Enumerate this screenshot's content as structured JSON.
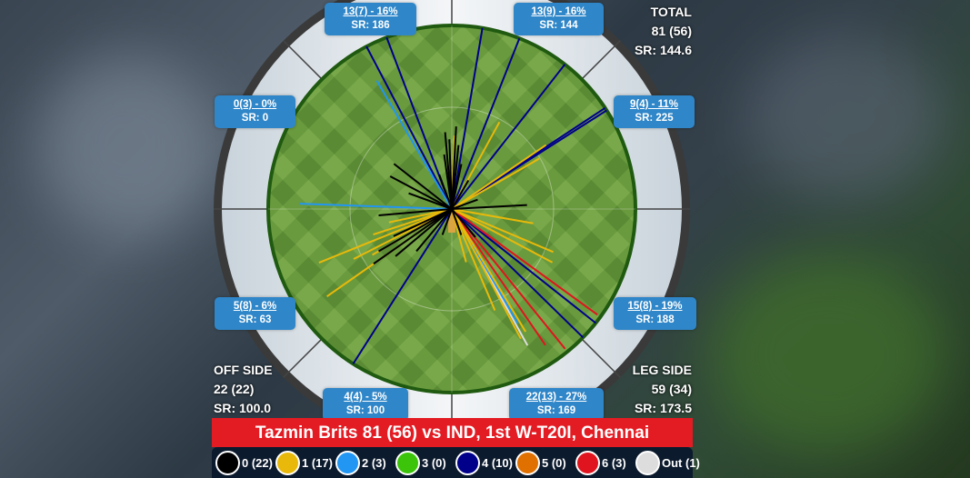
{
  "chart_data": {
    "type": "wagon-wheel",
    "title": "Tazmin Brits 81 (56) vs IND, 1st W-T20I, Chennai",
    "total": {
      "label": "TOTAL",
      "runs_balls": "81 (56)",
      "sr": "SR: 144.6"
    },
    "off_side": {
      "label": "OFF SIDE",
      "runs_balls": "22 (22)",
      "sr": "SR: 100.0"
    },
    "leg_side": {
      "label": "LEG SIDE",
      "runs_balls": "59 (34)",
      "sr": "SR: 173.5"
    },
    "sectors": [
      {
        "pos": "top-left",
        "label": "13(7) - 16%",
        "sr": "SR: 186"
      },
      {
        "pos": "top-right",
        "label": "13(9) - 16%",
        "sr": "SR: 144"
      },
      {
        "pos": "left-upper",
        "label": "0(3) - 0%",
        "sr": "SR: 0"
      },
      {
        "pos": "right-upper",
        "label": "9(4) - 11%",
        "sr": "SR: 225"
      },
      {
        "pos": "left-lower",
        "label": "5(8) - 6%",
        "sr": "SR: 63"
      },
      {
        "pos": "right-lower",
        "label": "15(8) - 19%",
        "sr": "SR: 188"
      },
      {
        "pos": "bottom-left",
        "label": "4(4) - 5%",
        "sr": "SR: 100"
      },
      {
        "pos": "bottom-right",
        "label": "22(13) - 27%",
        "sr": "SR: 169"
      }
    ],
    "legend": [
      {
        "label": "0 (22)",
        "color": "#000000"
      },
      {
        "label": "1 (17)",
        "color": "#e8b90a"
      },
      {
        "label": "2 (3)",
        "color": "#2196f3"
      },
      {
        "label": "3 (0)",
        "color": "#3cc40a"
      },
      {
        "label": "4 (10)",
        "color": "#00008b"
      },
      {
        "label": "5 (0)",
        "color": "#e07000"
      },
      {
        "label": "6 (3)",
        "color": "#e0141e"
      },
      {
        "label": "Out (1)",
        "color": "#dddddd"
      }
    ],
    "shots": [
      {
        "runs": 4,
        "angle": -27.7,
        "dist": 1.0
      },
      {
        "runs": 4,
        "angle": -20.8,
        "dist": 1.0
      },
      {
        "runs": 4,
        "angle": 9.6,
        "dist": 1.0
      },
      {
        "runs": 4,
        "angle": 21.6,
        "dist": 1.0
      },
      {
        "runs": 4,
        "angle": 38,
        "dist": 1.0
      },
      {
        "runs": 4,
        "angle": 56.6,
        "dist": 1.0
      },
      {
        "runs": 4,
        "angle": 57.5,
        "dist": 1.0
      },
      {
        "runs": 4,
        "angle": -147.5,
        "dist": 1.0
      },
      {
        "runs": 4,
        "angle": 128.4,
        "dist": 1.0
      },
      {
        "runs": 4,
        "angle": 134.4,
        "dist": 1.0
      },
      {
        "runs": 6,
        "angle": 126,
        "dist": 0.98
      },
      {
        "runs": 6,
        "angle": 141,
        "dist": 0.98
      },
      {
        "runs": 6,
        "angle": 145.5,
        "dist": 0.9
      },
      {
        "runs": "out",
        "angle": 151,
        "dist": 0.85
      },
      {
        "runs": 2,
        "angle": -30.3,
        "dist": 0.81
      },
      {
        "runs": 2,
        "angle": -88,
        "dist": 0.83
      },
      {
        "runs": 2,
        "angle": 150,
        "dist": 0.72
      },
      {
        "runs": 1,
        "angle": 28.7,
        "dist": 0.54
      },
      {
        "runs": 1,
        "angle": 55.8,
        "dist": 0.62
      },
      {
        "runs": 1,
        "angle": 60,
        "dist": 0.55
      },
      {
        "runs": 1,
        "angle": -112,
        "dist": 0.78
      },
      {
        "runs": 1,
        "angle": -125,
        "dist": 0.83
      },
      {
        "runs": 1,
        "angle": -117,
        "dist": 0.6
      },
      {
        "runs": 1,
        "angle": -108,
        "dist": 0.45
      },
      {
        "runs": 1,
        "angle": -102,
        "dist": 0.35
      },
      {
        "runs": 1,
        "angle": 152,
        "dist": 0.8
      },
      {
        "runs": 1,
        "angle": 149,
        "dist": 0.78
      },
      {
        "runs": 1,
        "angle": 118,
        "dist": 0.62
      },
      {
        "runs": 1,
        "angle": 113,
        "dist": 0.6
      },
      {
        "runs": 1,
        "angle": 2,
        "dist": 0.4
      },
      {
        "runs": 1,
        "angle": 157,
        "dist": 0.6
      },
      {
        "runs": 1,
        "angle": -120,
        "dist": 0.5
      },
      {
        "runs": 1,
        "angle": 100,
        "dist": 0.45
      },
      {
        "runs": 1,
        "angle": 165,
        "dist": 0.3
      },
      {
        "runs": 0,
        "angle": -5,
        "dist": 0.42
      },
      {
        "runs": 0,
        "angle": -2,
        "dist": 0.38
      },
      {
        "runs": 0,
        "angle": 3,
        "dist": 0.45
      },
      {
        "runs": 0,
        "angle": -8,
        "dist": 0.3
      },
      {
        "runs": 0,
        "angle": 6,
        "dist": 0.35
      },
      {
        "runs": 0,
        "angle": -52,
        "dist": 0.4
      },
      {
        "runs": 0,
        "angle": -62,
        "dist": 0.38
      },
      {
        "runs": 0,
        "angle": -95,
        "dist": 0.4
      },
      {
        "runs": 0,
        "angle": 87,
        "dist": 0.41
      },
      {
        "runs": 0,
        "angle": -125,
        "dist": 0.52
      },
      {
        "runs": 0,
        "angle": -120,
        "dist": 0.46
      },
      {
        "runs": 0,
        "angle": -130,
        "dist": 0.4
      },
      {
        "runs": 0,
        "angle": -115,
        "dist": 0.35
      },
      {
        "runs": 0,
        "angle": -140,
        "dist": 0.3
      },
      {
        "runs": 0,
        "angle": 12,
        "dist": 0.25
      },
      {
        "runs": 0,
        "angle": -20,
        "dist": 0.2
      },
      {
        "runs": 0,
        "angle": 140,
        "dist": 0.2
      },
      {
        "runs": 0,
        "angle": 160,
        "dist": 0.15
      },
      {
        "runs": 0,
        "angle": -160,
        "dist": 0.15
      },
      {
        "runs": 0,
        "angle": 70,
        "dist": 0.15
      },
      {
        "runs": 0,
        "angle": -70,
        "dist": 0.25
      },
      {
        "runs": 0,
        "angle": 30,
        "dist": 0.18
      }
    ]
  }
}
